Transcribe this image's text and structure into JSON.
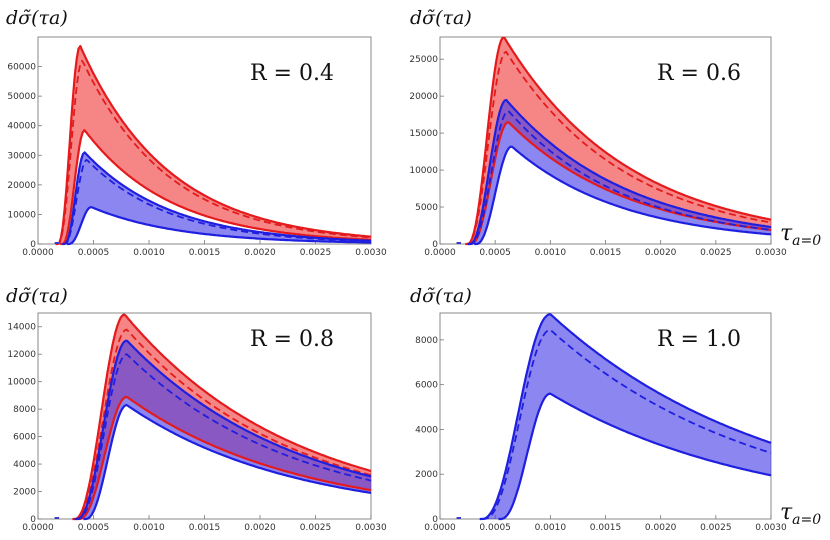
{
  "chart_data": [
    {
      "type": "area",
      "ylabel": "dσ̃(τa)",
      "annotation": "R = 0.4",
      "xlabel": "",
      "xlim": [
        0,
        0.003
      ],
      "ylim": [
        0,
        70000
      ],
      "xticks": [
        "0.0000",
        "0.0005",
        "0.0010",
        "0.0015",
        "0.0020",
        "0.0025",
        "0.0030"
      ],
      "yticks": [
        {
          "v": 0,
          "label": "0"
        },
        {
          "v": 10000,
          "label": "10000"
        },
        {
          "v": 20000,
          "label": "20000"
        },
        {
          "v": 30000,
          "label": "30000"
        },
        {
          "v": 40000,
          "label": "40000"
        },
        {
          "v": 50000,
          "label": "50000"
        },
        {
          "v": 60000,
          "label": "60000"
        }
      ],
      "series": [
        {
          "name": "red band (upper)",
          "color": "#e41a1c",
          "role": "band-upper",
          "x_start": 0.00018,
          "x_peak": 0.00038,
          "y_peak": 67000,
          "y_end": 2500
        },
        {
          "name": "red central",
          "color": "#e41a1c",
          "role": "central",
          "x_start": 0.00018,
          "x_peak": 0.0004,
          "y_peak": 62000,
          "y_end": 2200
        },
        {
          "name": "red band (lower)",
          "color": "#e41a1c",
          "role": "band-lower",
          "x_start": 0.00022,
          "x_peak": 0.00042,
          "y_peak": 38500,
          "y_end": 1400
        },
        {
          "name": "blue band (upper)",
          "color": "#1f1fe0",
          "role": "band-upper",
          "x_start": 0.00024,
          "x_peak": 0.00042,
          "y_peak": 31000,
          "y_end": 1100
        },
        {
          "name": "blue central",
          "color": "#1f1fe0",
          "role": "central",
          "x_start": 0.00024,
          "x_peak": 0.00044,
          "y_peak": 28500,
          "y_end": 900
        },
        {
          "name": "blue band (lower)",
          "color": "#1f1fe0",
          "role": "band-lower",
          "x_start": 0.00028,
          "x_peak": 0.00048,
          "y_peak": 12500,
          "y_end": 500
        }
      ]
    },
    {
      "type": "area",
      "ylabel": "dσ̃(τa)",
      "annotation": "R = 0.6",
      "xlabel": "τa=0",
      "xlim": [
        0,
        0.003
      ],
      "ylim": [
        0,
        28000
      ],
      "xticks": [
        "0.0000",
        "0.0005",
        "0.0010",
        "0.0015",
        "0.0020",
        "0.0025",
        "0.0030"
      ],
      "yticks": [
        {
          "v": 0,
          "label": "0"
        },
        {
          "v": 5000,
          "label": "5000"
        },
        {
          "v": 10000,
          "label": "10000"
        },
        {
          "v": 15000,
          "label": "15000"
        },
        {
          "v": 20000,
          "label": "20000"
        },
        {
          "v": 25000,
          "label": "25000"
        }
      ],
      "series": [
        {
          "name": "red band (upper)",
          "color": "#e41a1c",
          "role": "band-upper",
          "x_start": 0.00025,
          "x_peak": 0.00058,
          "y_peak": 28000,
          "y_end": 3300
        },
        {
          "name": "red central",
          "color": "#e41a1c",
          "role": "central",
          "x_start": 0.00025,
          "x_peak": 0.0006,
          "y_peak": 26000,
          "y_end": 2900
        },
        {
          "name": "red band (lower)",
          "color": "#e41a1c",
          "role": "band-lower",
          "x_start": 0.00028,
          "x_peak": 0.00062,
          "y_peak": 16500,
          "y_end": 1900
        },
        {
          "name": "blue band (upper)",
          "color": "#1f1fe0",
          "role": "band-upper",
          "x_start": 0.00027,
          "x_peak": 0.0006,
          "y_peak": 19500,
          "y_end": 2300
        },
        {
          "name": "blue central",
          "color": "#1f1fe0",
          "role": "central",
          "x_start": 0.00028,
          "x_peak": 0.00062,
          "y_peak": 18000,
          "y_end": 1900
        },
        {
          "name": "blue band (lower)",
          "color": "#1f1fe0",
          "role": "band-lower",
          "x_start": 0.00033,
          "x_peak": 0.00065,
          "y_peak": 13200,
          "y_end": 1300
        }
      ]
    },
    {
      "type": "area",
      "ylabel": "dσ̃(τa)",
      "annotation": "R = 0.8",
      "xlabel": "",
      "xlim": [
        0,
        0.003
      ],
      "ylim": [
        0,
        15000
      ],
      "xticks": [
        "0.0000",
        "0.0005",
        "0.0010",
        "0.0015",
        "0.0020",
        "0.0025",
        "0.0030"
      ],
      "yticks": [
        {
          "v": 0,
          "label": "0"
        },
        {
          "v": 2000,
          "label": "2000"
        },
        {
          "v": 4000,
          "label": "4000"
        },
        {
          "v": 6000,
          "label": "6000"
        },
        {
          "v": 8000,
          "label": "8000"
        },
        {
          "v": 10000,
          "label": "10000"
        },
        {
          "v": 12000,
          "label": "12000"
        },
        {
          "v": 14000,
          "label": "14000"
        }
      ],
      "series": [
        {
          "name": "red band (upper)",
          "color": "#e41a1c",
          "role": "band-upper",
          "x_start": 0.00033,
          "x_peak": 0.00078,
          "y_peak": 14900,
          "y_end": 3500
        },
        {
          "name": "red central",
          "color": "#e41a1c",
          "role": "central",
          "x_start": 0.00034,
          "x_peak": 0.0008,
          "y_peak": 13800,
          "y_end": 3200
        },
        {
          "name": "red band (lower)",
          "color": "#e41a1c",
          "role": "band-lower",
          "x_start": 0.00037,
          "x_peak": 0.0008,
          "y_peak": 8900,
          "y_end": 2100
        },
        {
          "name": "blue band (upper)",
          "color": "#1f1fe0",
          "role": "band-upper",
          "x_start": 0.00035,
          "x_peak": 0.0008,
          "y_peak": 13000,
          "y_end": 3100
        },
        {
          "name": "blue central",
          "color": "#1f1fe0",
          "role": "central",
          "x_start": 0.00036,
          "x_peak": 0.0008,
          "y_peak": 12000,
          "y_end": 2800
        },
        {
          "name": "blue band (lower)",
          "color": "#1f1fe0",
          "role": "band-lower",
          "x_start": 0.00043,
          "x_peak": 0.0008,
          "y_peak": 8300,
          "y_end": 1900
        }
      ]
    },
    {
      "type": "area",
      "ylabel": "dσ̃(τa)",
      "annotation": "R = 1.0",
      "xlabel": "τa=0",
      "xlim": [
        0,
        0.003
      ],
      "ylim": [
        0,
        9200
      ],
      "xticks": [
        "0.0000",
        "0.0005",
        "0.0010",
        "0.0015",
        "0.0020",
        "0.0025",
        "0.0030"
      ],
      "yticks": [
        {
          "v": 0,
          "label": "0"
        },
        {
          "v": 2000,
          "label": "2000"
        },
        {
          "v": 4000,
          "label": "4000"
        },
        {
          "v": 6000,
          "label": "6000"
        },
        {
          "v": 8000,
          "label": "8000"
        }
      ],
      "series": [
        {
          "name": "blue band (upper)",
          "color": "#1f1fe0",
          "role": "band-upper",
          "x_start": 0.00038,
          "x_peak": 0.001,
          "y_peak": 9150,
          "y_end": 3400
        },
        {
          "name": "blue central",
          "color": "#1f1fe0",
          "role": "central",
          "x_start": 0.0004,
          "x_peak": 0.001,
          "y_peak": 8450,
          "y_end": 2950
        },
        {
          "name": "blue band (lower)",
          "color": "#1f1fe0",
          "role": "band-lower",
          "x_start": 0.00055,
          "x_peak": 0.001,
          "y_peak": 5600,
          "y_end": 1950
        }
      ]
    }
  ]
}
